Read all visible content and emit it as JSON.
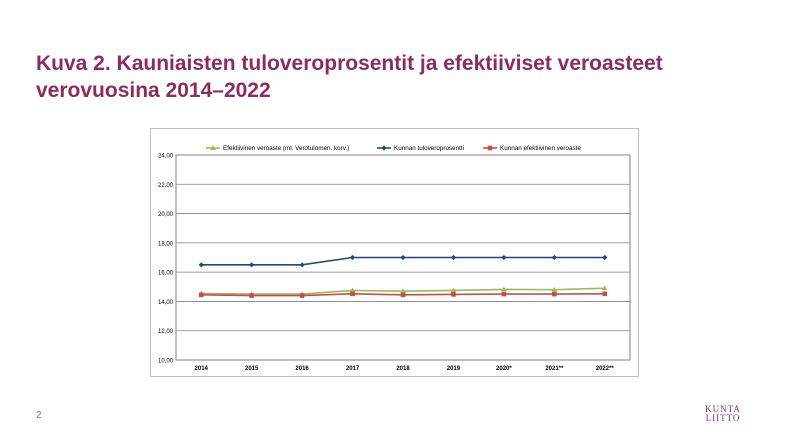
{
  "slide": {
    "title_line1": "Kuva 2. Kauniaisten tuloveroprosentit ja efektiiviset veroasteet",
    "title_line2": "verovuosina 2014–2022",
    "page_number": "2",
    "logo_line1": "KUNTA",
    "logo_line2": "LIITTO",
    "accent_color": "#8c2c5e"
  },
  "chart_data": {
    "type": "line",
    "categories": [
      "2014",
      "2015",
      "2016",
      "2017",
      "2018",
      "2019",
      "2020*",
      "2021**",
      "2022**"
    ],
    "y_tick_labels": [
      "10,00",
      "12,00",
      "14,00",
      "16,00",
      "18,00",
      "20,00",
      "22,00",
      "24,00"
    ],
    "ylim": [
      10,
      24
    ],
    "grid": true,
    "legend_position": "top",
    "series": [
      {
        "name": "Efektiivinen veroaste (ml. Verotulomen. korv.)",
        "color": "#9bbb59",
        "marker": "triangle",
        "values": [
          14.55,
          14.5,
          14.5,
          14.75,
          14.7,
          14.75,
          14.82,
          14.8,
          14.9
        ]
      },
      {
        "name": "Kunnan tuloveroprosentti",
        "color": "#1f497d",
        "marker": "diamond",
        "values": [
          16.5,
          16.5,
          16.5,
          17.0,
          17.0,
          17.0,
          17.0,
          17.0,
          17.0
        ]
      },
      {
        "name": "Kunnan efektiivinen veroaste",
        "color": "#c0504d",
        "marker": "square",
        "values": [
          14.45,
          14.4,
          14.4,
          14.52,
          14.45,
          14.48,
          14.5,
          14.5,
          14.52
        ]
      }
    ]
  }
}
